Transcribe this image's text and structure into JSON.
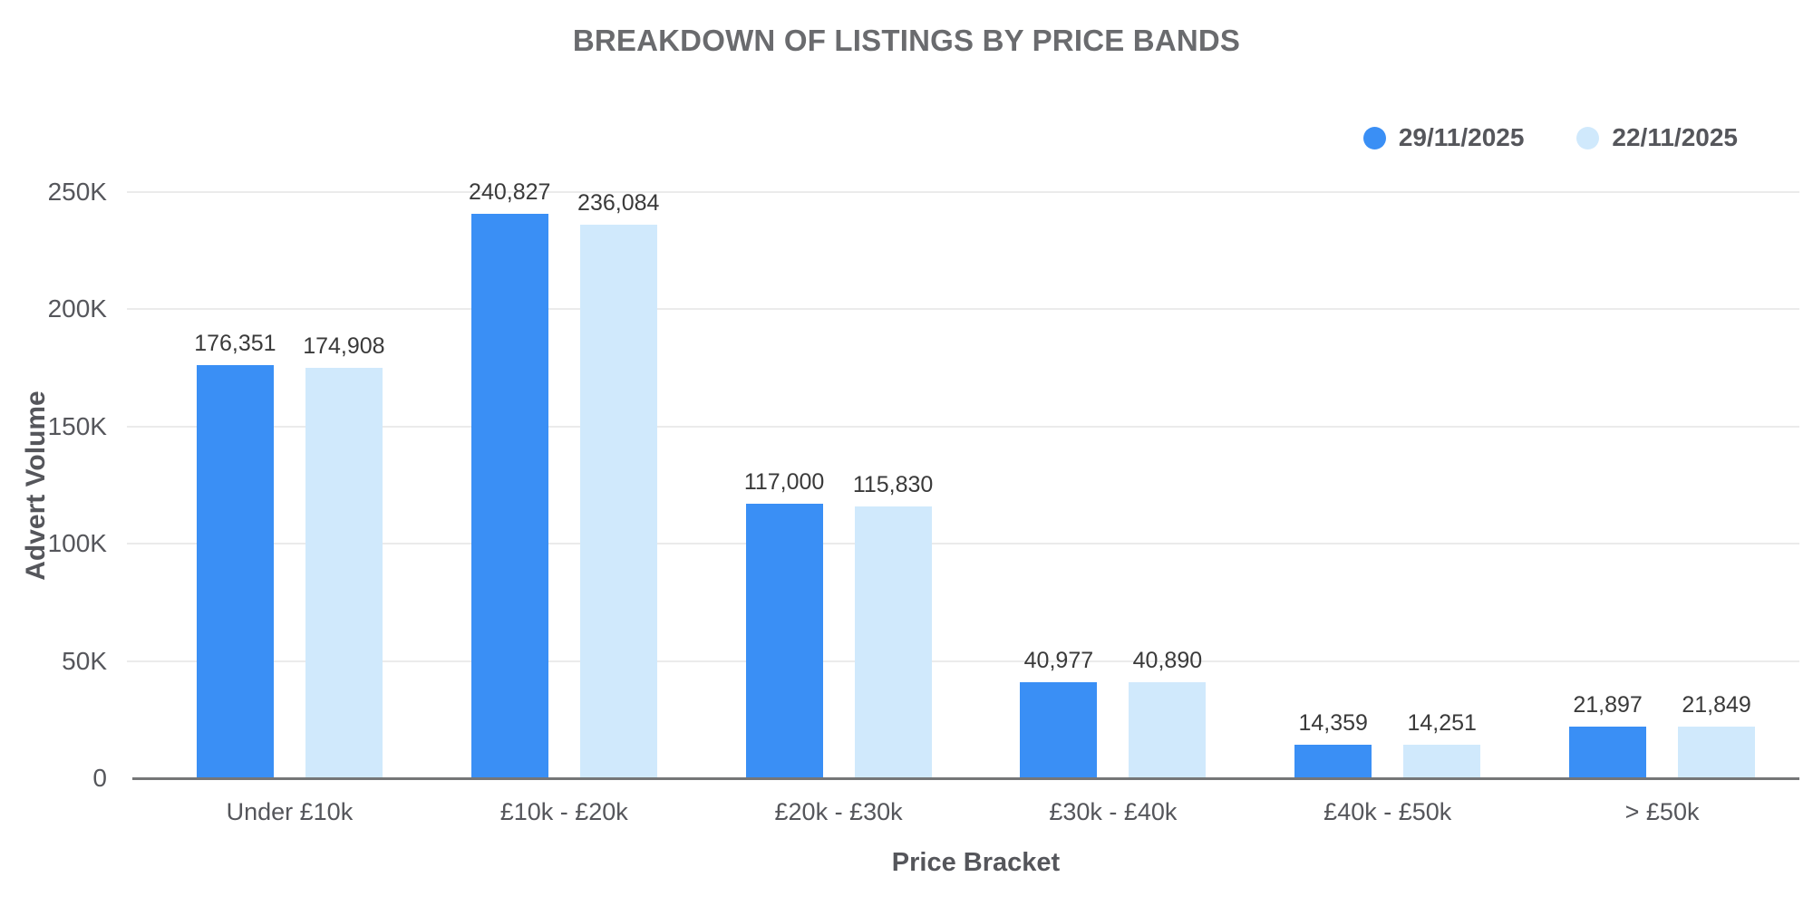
{
  "title": "BREAKDOWN OF LISTINGS BY PRICE BANDS",
  "chart_data": {
    "type": "bar",
    "title": "BREAKDOWN OF LISTINGS BY PRICE BANDS",
    "categories": [
      "Under £10k",
      "£10k - £20k",
      "£20k - £30k",
      "£30k - £40k",
      "£40k - £50k",
      "> £50k"
    ],
    "series": [
      {
        "name": "29/11/2025",
        "color": "#3a8ff5",
        "values": [
          176351,
          240827,
          117000,
          40977,
          14359,
          21897
        ]
      },
      {
        "name": "22/11/2025",
        "color": "#d0e9fc",
        "values": [
          174908,
          236084,
          115830,
          40890,
          14251,
          21849
        ]
      }
    ],
    "xlabel": "Price Bracket",
    "ylabel": "Advert Volume",
    "ylim": [
      0,
      250000
    ],
    "yticks": [
      {
        "value": 0,
        "label": "0"
      },
      {
        "value": 50000,
        "label": "50K"
      },
      {
        "value": 100000,
        "label": "100K"
      },
      {
        "value": 150000,
        "label": "150K"
      },
      {
        "value": 200000,
        "label": "200K"
      },
      {
        "value": 250000,
        "label": "250K"
      }
    ],
    "grid": true,
    "legend_position": "top-right",
    "value_labels": true,
    "colors": {
      "title_text": "#6a6b6e",
      "axis_text": "#55565b",
      "value_text": "#3a3a3a",
      "gridline": "#ebebeb",
      "axis_line": "#757677"
    }
  }
}
